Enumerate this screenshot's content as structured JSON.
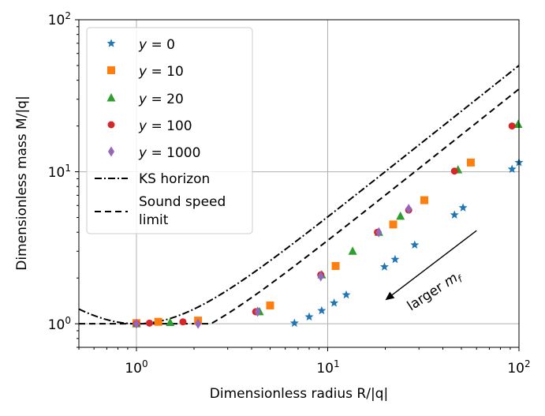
{
  "chart_data": {
    "type": "scatter",
    "xscale": "log",
    "yscale": "log",
    "xlim": [
      0.5,
      100
    ],
    "ylim": [
      0.7,
      100
    ],
    "xlabel": "Dimensionless radius R/|q|",
    "ylabel": "Dimensionless mass M/|q|",
    "grid": true,
    "legend_position": "upper-left",
    "x_ticks": [
      {
        "base": "10",
        "exp": "0",
        "value": 1
      },
      {
        "base": "10",
        "exp": "1",
        "value": 10
      },
      {
        "base": "10",
        "exp": "2",
        "value": 100
      }
    ],
    "y_ticks": [
      {
        "base": "10",
        "exp": "0",
        "value": 1
      },
      {
        "base": "10",
        "exp": "1",
        "value": 10
      },
      {
        "base": "10",
        "exp": "2",
        "value": 100
      }
    ],
    "series": [
      {
        "name": "y = 0",
        "label_var": "y",
        "label_val": "0",
        "marker": "star",
        "color": "#1f77b4",
        "points": [
          [
            1.0,
            1.0
          ],
          [
            6.7,
            1.01
          ],
          [
            8.0,
            1.11
          ],
          [
            9.3,
            1.22
          ],
          [
            10.8,
            1.37
          ],
          [
            12.5,
            1.55
          ],
          [
            19.8,
            2.37
          ],
          [
            22.5,
            2.65
          ],
          [
            28.5,
            3.3
          ],
          [
            46,
            5.2
          ],
          [
            51,
            5.8
          ],
          [
            92,
            10.4
          ],
          [
            100,
            11.5
          ]
        ]
      },
      {
        "name": "y = 10",
        "label_var": "y",
        "label_val": "10",
        "marker": "square",
        "color": "#ff7f0e",
        "points": [
          [
            1.0,
            1.01
          ],
          [
            1.3,
            1.03
          ],
          [
            2.1,
            1.05
          ],
          [
            5.0,
            1.32
          ],
          [
            11.0,
            2.4
          ],
          [
            22.0,
            4.5
          ],
          [
            32.0,
            6.5
          ],
          [
            56.0,
            11.5
          ]
        ]
      },
      {
        "name": "y = 20",
        "label_var": "y",
        "label_val": "20",
        "marker": "triangle",
        "color": "#2ca02c",
        "points": [
          [
            1.0,
            1.0
          ],
          [
            1.5,
            1.02
          ],
          [
            4.4,
            1.2
          ],
          [
            9.3,
            2.1
          ],
          [
            13.5,
            3.0
          ],
          [
            18.5,
            4.0
          ],
          [
            24.0,
            5.1
          ],
          [
            48.0,
            10.3
          ],
          [
            99.0,
            20.5
          ]
        ]
      },
      {
        "name": "y = 100",
        "label_var": "y",
        "label_val": "100",
        "marker": "circle",
        "color": "#d62728",
        "points": [
          [
            1.0,
            1.0
          ],
          [
            1.17,
            1.01
          ],
          [
            1.75,
            1.03
          ],
          [
            4.2,
            1.2
          ],
          [
            9.2,
            2.1
          ],
          [
            18.2,
            4.0
          ],
          [
            26.5,
            5.6
          ],
          [
            46.0,
            10.1
          ],
          [
            92.0,
            20.0
          ]
        ]
      },
      {
        "name": "y = 1000",
        "label_var": "y",
        "label_val": "1000",
        "marker": "diamond",
        "color": "#9467bd",
        "points": [
          [
            1.0,
            1.0
          ],
          [
            2.1,
            1.0
          ],
          [
            4.3,
            1.2
          ],
          [
            9.2,
            2.05
          ],
          [
            18.5,
            4.0
          ],
          [
            26.5,
            5.7
          ]
        ]
      }
    ],
    "curves": [
      {
        "name": "KS horizon",
        "style": "dashdot",
        "color": "#000000"
      },
      {
        "name": "Sound speed limit",
        "name_lines": [
          "Sound speed",
          "limit"
        ],
        "style": "dashed",
        "color": "#000000",
        "scale": 0.7
      }
    ],
    "annotation": {
      "text_prefix": "larger ",
      "text_var": "m",
      "text_sub": "f",
      "arrow_from": [
        60,
        4.1
      ],
      "arrow_to": [
        20,
        1.43
      ]
    }
  }
}
